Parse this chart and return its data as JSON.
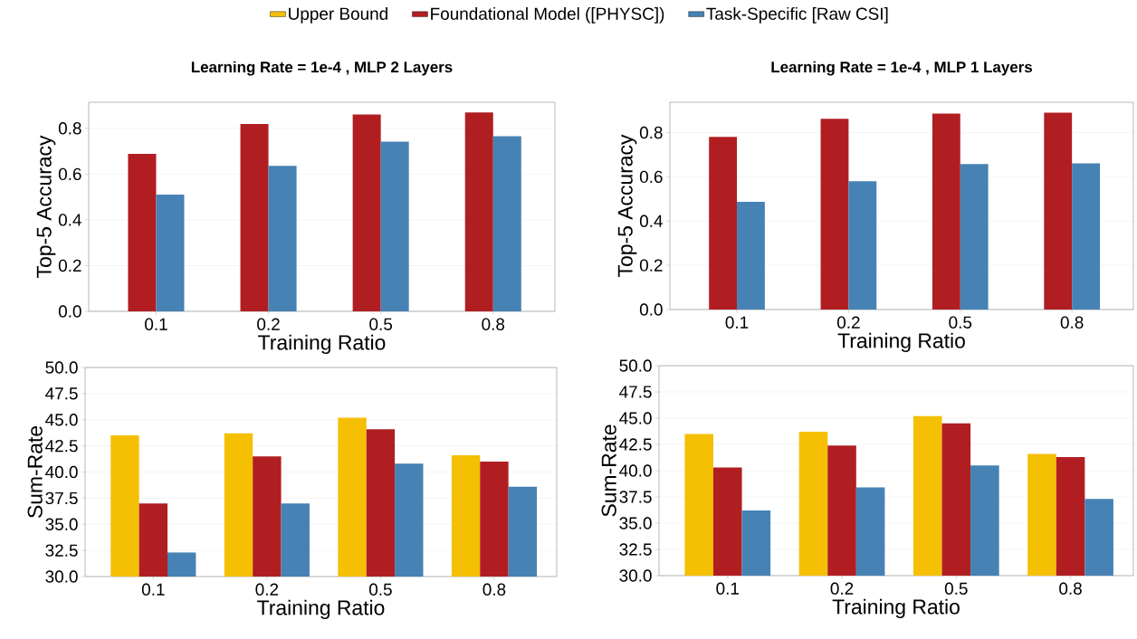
{
  "chart_data": [
    {
      "type": "bar",
      "title": "Learning Rate = 1e-4 , MLP 2 Layers",
      "xlabel": "Training Ratio",
      "ylabel": "Top-5 Accuracy",
      "categories": [
        "0.1",
        "0.2",
        "0.5",
        "0.8"
      ],
      "series": [
        {
          "color": "#b11e22",
          "values": [
            0.688,
            0.819,
            0.861,
            0.869
          ]
        },
        {
          "color": "#4682b4",
          "values": [
            0.51,
            0.636,
            0.742,
            0.766
          ]
        }
      ],
      "ylim": [
        0,
        0.914
      ],
      "yticks": [
        {
          "value": 0,
          "label": "0.0"
        },
        {
          "value": 0.2,
          "label": "0.2"
        },
        {
          "value": 0.4,
          "label": "0.4"
        },
        {
          "value": 0.6,
          "label": "0.6"
        },
        {
          "value": 0.8,
          "label": "0.8"
        }
      ],
      "grid": "y"
    },
    {
      "type": "bar",
      "title": "Learning Rate = 1e-4 , MLP 1 Layers",
      "xlabel": "Training Ratio",
      "ylabel": "Top-5 Accuracy",
      "categories": [
        "0.1",
        "0.2",
        "0.5",
        "0.8"
      ],
      "series": [
        {
          "color": "#b11e22",
          "values": [
            0.78,
            0.862,
            0.886,
            0.89
          ]
        },
        {
          "color": "#4682b4",
          "values": [
            0.487,
            0.58,
            0.658,
            0.661
          ]
        }
      ],
      "ylim": [
        0,
        0.937
      ],
      "yticks": [
        {
          "value": 0,
          "label": "0.0"
        },
        {
          "value": 0.2,
          "label": "0.2"
        },
        {
          "value": 0.4,
          "label": "0.4"
        },
        {
          "value": 0.6,
          "label": "0.6"
        },
        {
          "value": 0.8,
          "label": "0.8"
        }
      ],
      "grid": "y"
    },
    {
      "type": "bar",
      "xlabel": "Training Ratio",
      "ylabel": "Sum-Rate",
      "categories": [
        "0.1",
        "0.2",
        "0.5",
        "0.8"
      ],
      "legend": "top",
      "series": [
        {
          "name": "Upper Bound",
          "color": "#f5bf03",
          "values": [
            43.5,
            43.7,
            45.2,
            41.6
          ]
        },
        {
          "name": "Foundational Model ([PHYSC])",
          "color": "#b11e22",
          "values": [
            37.0,
            41.5,
            44.1,
            41.0
          ]
        },
        {
          "name": "Task-Specific [Raw CSI]",
          "color": "#4682b4",
          "values": [
            32.3,
            37.0,
            40.8,
            38.6
          ]
        }
      ],
      "ylim": [
        30,
        50
      ],
      "yticks": [
        {
          "value": 30,
          "label": "30.0"
        },
        {
          "value": 32.5,
          "label": "32.5"
        },
        {
          "value": 35,
          "label": "35.0"
        },
        {
          "value": 37.5,
          "label": "37.5"
        },
        {
          "value": 40,
          "label": "40.0"
        },
        {
          "value": 42.5,
          "label": "42.5"
        },
        {
          "value": 45,
          "label": "45.0"
        },
        {
          "value": 47.5,
          "label": "47.5"
        },
        {
          "value": 50,
          "label": "50.0"
        }
      ],
      "grid": "y"
    },
    {
      "type": "bar",
      "xlabel": "Training Ratio",
      "ylabel": "Sum-Rate",
      "categories": [
        "0.1",
        "0.2",
        "0.5",
        "0.8"
      ],
      "series": [
        {
          "color": "#f5bf03",
          "values": [
            43.5,
            43.7,
            45.2,
            41.6
          ]
        },
        {
          "color": "#b11e22",
          "values": [
            40.3,
            42.4,
            44.5,
            41.3
          ]
        },
        {
          "color": "#4682b4",
          "values": [
            36.2,
            38.4,
            40.5,
            37.3
          ]
        }
      ],
      "ylim": [
        30,
        50
      ],
      "yticks": [
        {
          "value": 30,
          "label": "30.0"
        },
        {
          "value": 32.5,
          "label": "32.5"
        },
        {
          "value": 35,
          "label": "35.0"
        },
        {
          "value": 37.5,
          "label": "37.5"
        },
        {
          "value": 40,
          "label": "40.0"
        },
        {
          "value": 42.5,
          "label": "42.5"
        },
        {
          "value": 45,
          "label": "45.0"
        },
        {
          "value": 47.5,
          "label": "47.5"
        },
        {
          "value": 50,
          "label": "50.0"
        }
      ],
      "grid": "y"
    }
  ]
}
